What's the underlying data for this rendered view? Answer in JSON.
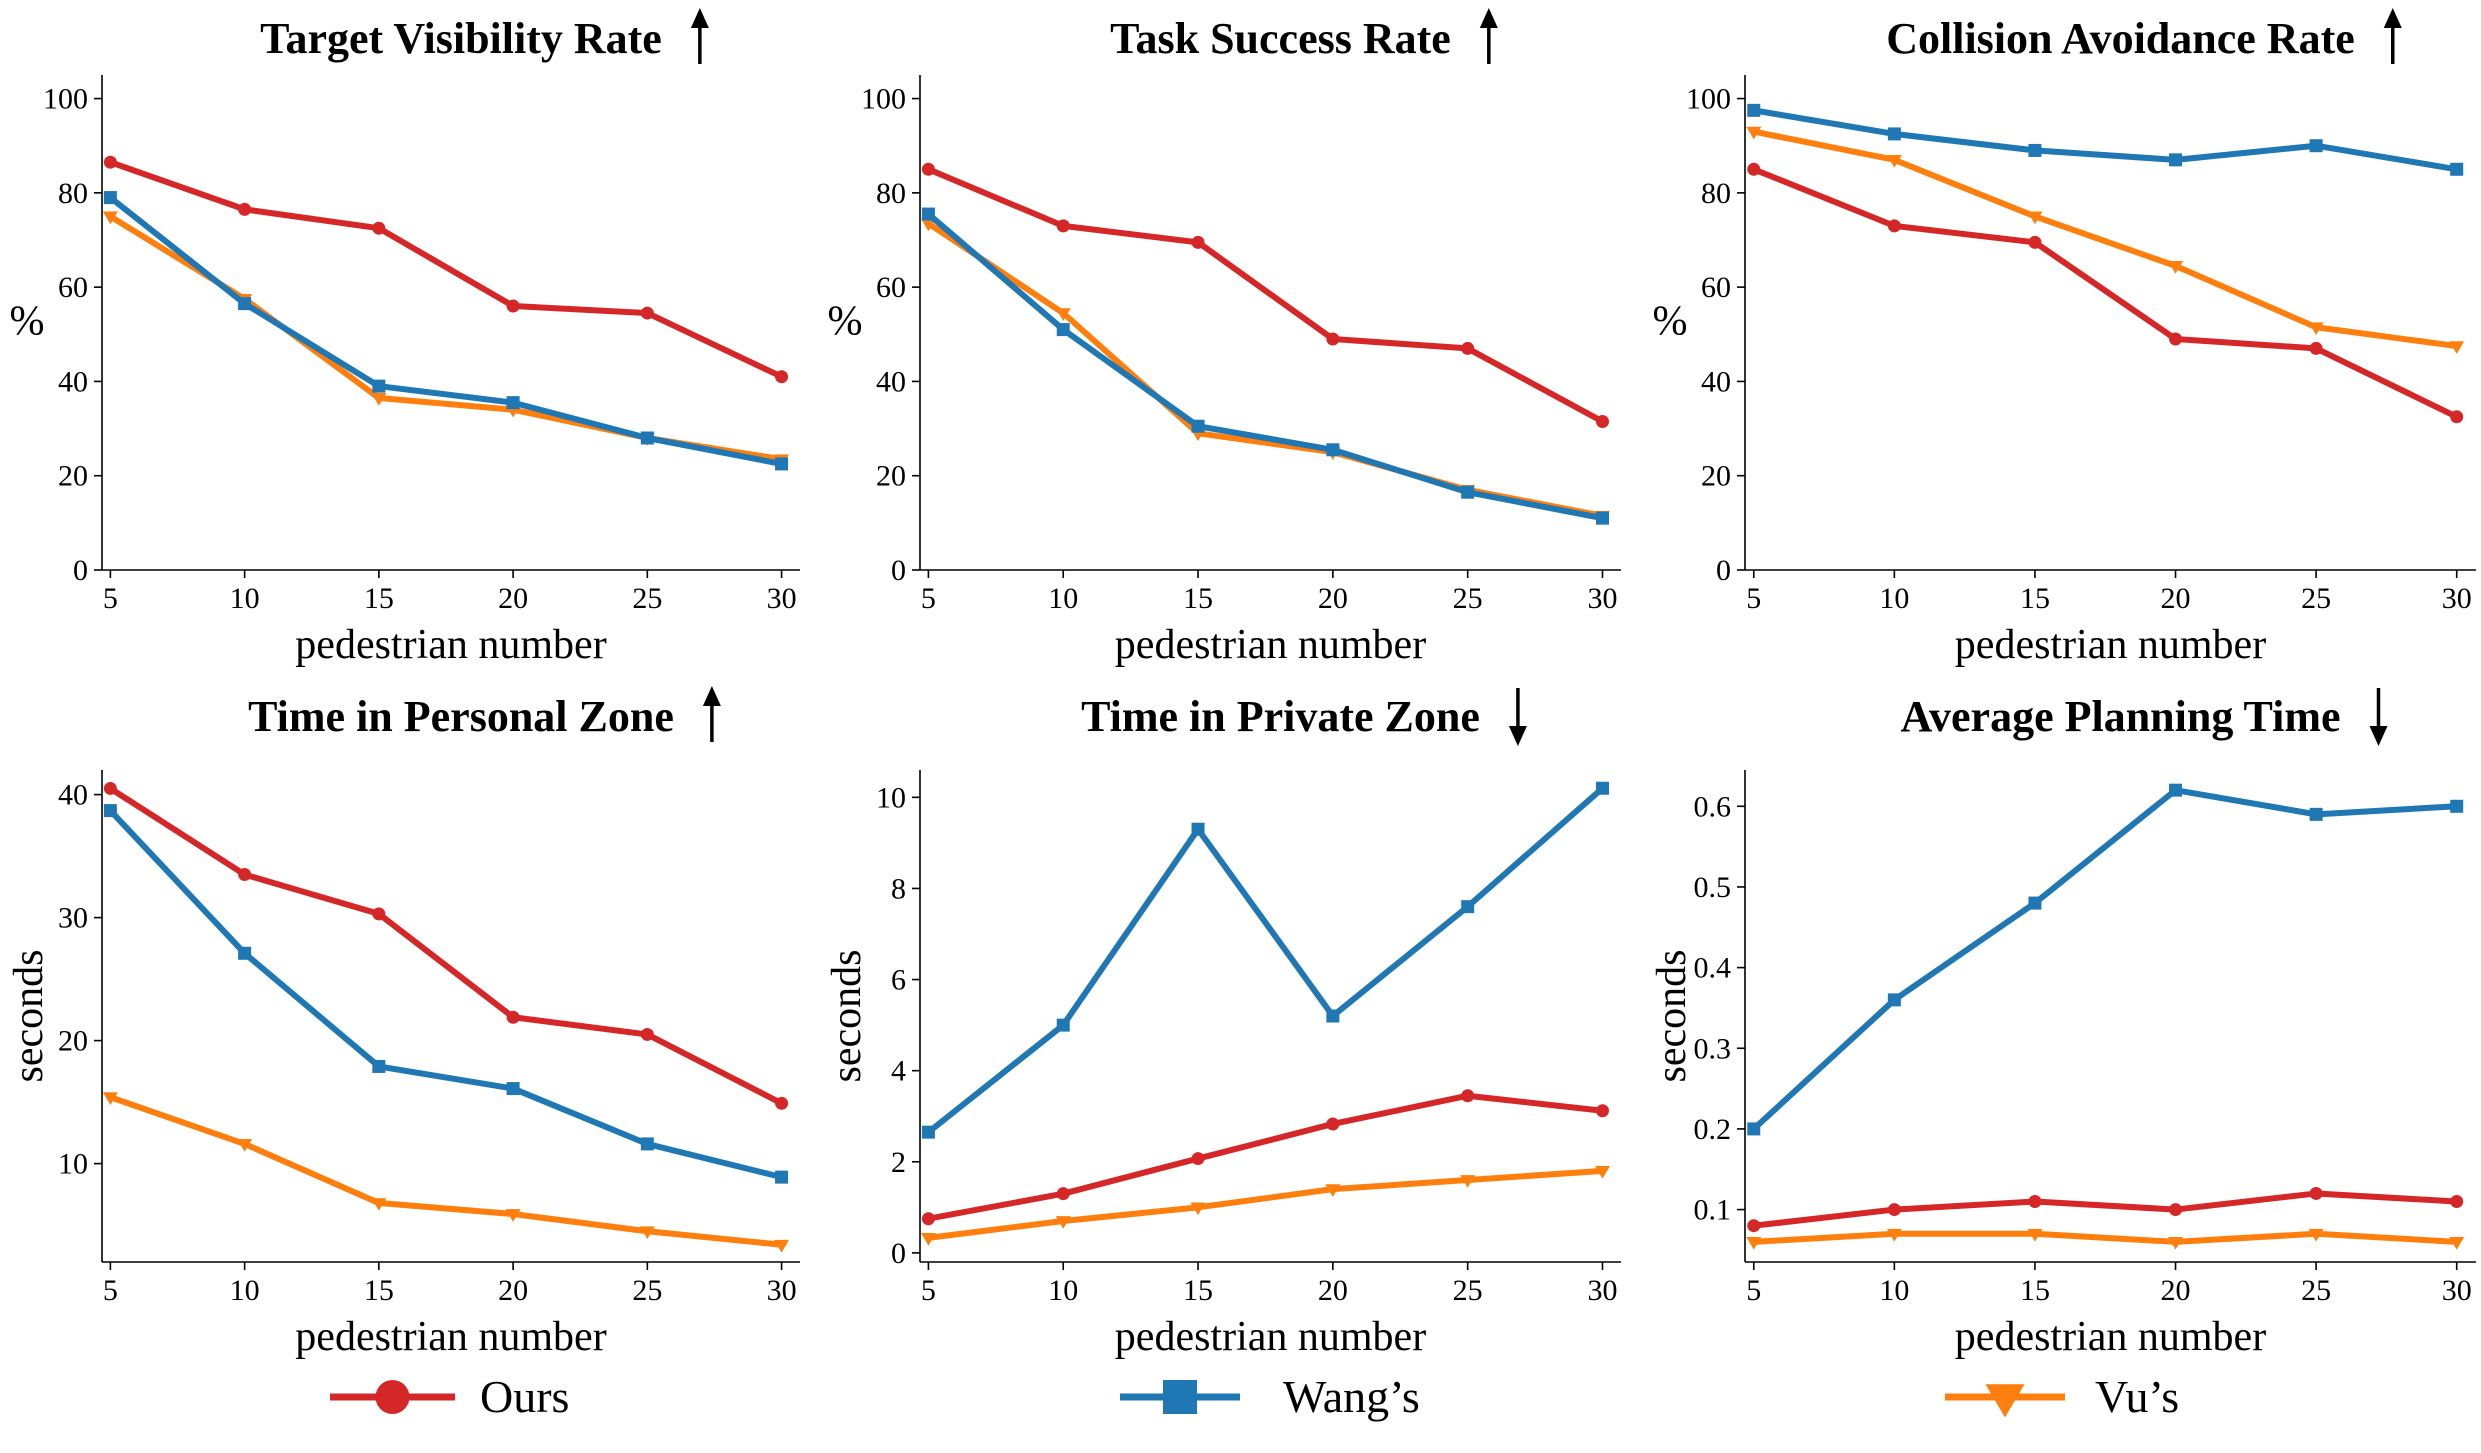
{
  "colors": {
    "Ours": "#d62728",
    "Wang's": "#1f77b4",
    "Vu's": "#ff7f0e"
  },
  "legend": {
    "placement": "bottom",
    "items": [
      {
        "label": "Ours",
        "marker": "circle"
      },
      {
        "label": "Wang’s",
        "marker": "square"
      },
      {
        "label": "Vu’s",
        "marker": "triangle-down"
      }
    ]
  },
  "chart_data": [
    {
      "type": "line",
      "title": "Target Visibility Rate",
      "arrow": "up",
      "xlabel": "pedestrian number",
      "ylabel": "%",
      "ylim": [
        0,
        105
      ],
      "yticks": [
        0,
        20,
        40,
        60,
        80,
        100
      ],
      "x": [
        5,
        10,
        15,
        20,
        25,
        30
      ],
      "series": [
        {
          "name": "Ours",
          "values": [
            86.5,
            76.5,
            72.5,
            56.0,
            54.5,
            41.0
          ]
        },
        {
          "name": "Wang's",
          "values": [
            79.0,
            56.5,
            39.0,
            35.5,
            28.0,
            22.5
          ]
        },
        {
          "name": "Vu's",
          "values": [
            75.0,
            57.5,
            36.5,
            34.0,
            28.0,
            23.5
          ]
        }
      ]
    },
    {
      "type": "line",
      "title": "Task Success Rate",
      "arrow": "up",
      "xlabel": "pedestrian number",
      "ylabel": "%",
      "ylim": [
        0,
        105
      ],
      "yticks": [
        0,
        20,
        40,
        60,
        80,
        100
      ],
      "x": [
        5,
        10,
        15,
        20,
        25,
        30
      ],
      "series": [
        {
          "name": "Ours",
          "values": [
            85.0,
            73.0,
            69.5,
            49.0,
            47.0,
            31.5
          ]
        },
        {
          "name": "Wang's",
          "values": [
            75.5,
            51.0,
            30.5,
            25.5,
            16.5,
            11.0
          ]
        },
        {
          "name": "Vu's",
          "values": [
            73.5,
            54.5,
            29.0,
            25.0,
            17.0,
            11.5
          ]
        }
      ]
    },
    {
      "type": "line",
      "title": "Collision Avoidance Rate",
      "arrow": "up",
      "xlabel": "pedestrian number",
      "ylabel": "%",
      "ylim": [
        0,
        105
      ],
      "yticks": [
        0,
        20,
        40,
        60,
        80,
        100
      ],
      "x": [
        5,
        10,
        15,
        20,
        25,
        30
      ],
      "series": [
        {
          "name": "Ours",
          "values": [
            85.0,
            73.0,
            69.5,
            49.0,
            47.0,
            32.5
          ]
        },
        {
          "name": "Wang's",
          "values": [
            97.5,
            92.5,
            89.0,
            87.0,
            90.0,
            85.0
          ]
        },
        {
          "name": "Vu's",
          "values": [
            93.0,
            87.0,
            75.0,
            64.5,
            51.5,
            47.5
          ]
        }
      ]
    },
    {
      "type": "line",
      "title": "Time in Personal Zone",
      "arrow": "up",
      "xlabel": "pedestrian number",
      "ylabel": "seconds",
      "ylim": [
        2,
        42
      ],
      "yticks": [
        10,
        20,
        30,
        40
      ],
      "x": [
        5,
        10,
        15,
        20,
        25,
        30
      ],
      "series": [
        {
          "name": "Ours",
          "values": [
            40.5,
            33.5,
            30.3,
            21.9,
            20.5,
            14.9
          ]
        },
        {
          "name": "Wang's",
          "values": [
            38.7,
            27.1,
            17.9,
            16.1,
            11.6,
            8.9
          ]
        },
        {
          "name": "Vu's",
          "values": [
            15.4,
            11.6,
            6.8,
            5.9,
            4.5,
            3.4
          ]
        }
      ]
    },
    {
      "type": "line",
      "title": "Time in Private Zone",
      "arrow": "down",
      "xlabel": "pedestrian number",
      "ylabel": "seconds",
      "ylim": [
        -0.2,
        10.6
      ],
      "yticks": [
        0,
        2,
        4,
        6,
        8,
        10
      ],
      "x": [
        5,
        10,
        15,
        20,
        25,
        30
      ],
      "series": [
        {
          "name": "Ours",
          "values": [
            0.75,
            1.3,
            2.07,
            2.83,
            3.45,
            3.12
          ]
        },
        {
          "name": "Wang's",
          "values": [
            2.65,
            5.0,
            9.3,
            5.2,
            7.6,
            10.2
          ]
        },
        {
          "name": "Vu's",
          "values": [
            0.33,
            0.7,
            1.0,
            1.4,
            1.6,
            1.8
          ]
        }
      ]
    },
    {
      "type": "line",
      "title": "Average Planning Time",
      "arrow": "down",
      "xlabel": "pedestrian number",
      "ylabel": "seconds",
      "ylim": [
        0.035,
        0.645
      ],
      "yticks": [
        0.1,
        0.2,
        0.3,
        0.4,
        0.5,
        0.6
      ],
      "x": [
        5,
        10,
        15,
        20,
        25,
        30
      ],
      "series": [
        {
          "name": "Ours",
          "values": [
            0.08,
            0.1,
            0.11,
            0.1,
            0.12,
            0.11
          ]
        },
        {
          "name": "Wang's",
          "values": [
            0.2,
            0.36,
            0.48,
            0.62,
            0.59,
            0.6
          ]
        },
        {
          "name": "Vu's",
          "values": [
            0.06,
            0.07,
            0.07,
            0.06,
            0.07,
            0.06
          ]
        }
      ]
    }
  ]
}
